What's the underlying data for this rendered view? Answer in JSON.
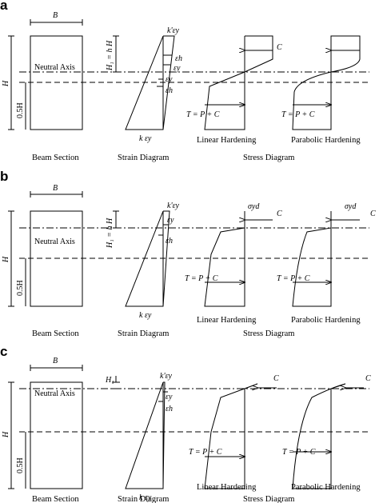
{
  "panels": [
    {
      "letter": "a",
      "dim_width": "B",
      "dim_height": "H",
      "dim_h1": "H₁ = h H",
      "dim_05h": "0.5H",
      "neutral_axis": "Neutral Axis",
      "strain_top": "k'εy",
      "strain_h_upper": "εh",
      "strain_y_upper": "εy",
      "strain_y_lower": "εy",
      "strain_h_lower": "εh",
      "strain_bottom": "k εy",
      "compression_label": "C",
      "tension_label": "T = P + C",
      "tension_label_2": "T = P + C",
      "yield_stress_label": "",
      "caption_section": "Beam Section",
      "caption_strain": "Strain Diagram",
      "caption_linear": "Linear Hardening",
      "caption_parabolic": "Parabolic Hardening",
      "caption_stress": "Stress Diagram"
    },
    {
      "letter": "b",
      "dim_width": "B",
      "dim_height": "H",
      "dim_h1": "H₁ = h H",
      "dim_05h": "0.5H",
      "neutral_axis": "Neutral Axis",
      "strain_top": "k'εy",
      "strain_h_upper": "εy",
      "strain_y_upper": "εh",
      "strain_y_lower": "",
      "strain_h_lower": "",
      "strain_bottom": "k εy",
      "compression_label": "C",
      "tension_label": "T = P + C",
      "tension_label_2": "T = P + C",
      "yield_stress_label": "σyd",
      "caption_section": "Beam Section",
      "caption_strain": "Strain Diagram",
      "caption_linear": "Linear Hardening",
      "caption_parabolic": "Parabolic Hardening",
      "caption_stress": "Stress Diagram"
    },
    {
      "letter": "c",
      "dim_width": "B",
      "dim_height": "H",
      "dim_h1": "H₁",
      "dim_05h": "0.5H",
      "neutral_axis": "Neutral Axis",
      "strain_top": "k'εy",
      "strain_h_upper": "εy",
      "strain_y_upper": "εh",
      "strain_y_lower": "",
      "strain_h_lower": "",
      "strain_bottom": "k εy",
      "compression_label": "C",
      "tension_label": "T = P + C",
      "tension_label_2": "T = P + C",
      "yield_stress_label": "",
      "caption_section": "Beam Section",
      "caption_strain": "Strain Diagram",
      "caption_linear": "Linear Hardening",
      "caption_parabolic": "Parabolic Hardening",
      "caption_stress": "Stress Diagram"
    }
  ]
}
